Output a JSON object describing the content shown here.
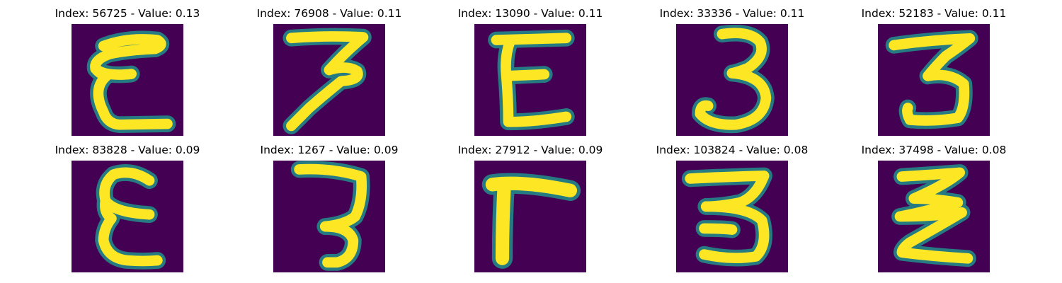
{
  "figure": {
    "background": "#ffffff",
    "image_background": "#440154",
    "colormap": [
      "#440154",
      "#3b528b",
      "#21918c",
      "#5ec962",
      "#fde725"
    ],
    "layout": {
      "rows": 2,
      "columns": 5
    }
  },
  "samples": [
    {
      "title": "Index: 56725 - Value: 0.13",
      "index": 56725,
      "value": 0.13,
      "glyph": "E"
    },
    {
      "title": "Index: 76908 - Value: 0.11",
      "index": 76908,
      "value": 0.11,
      "glyph": "7-like 3"
    },
    {
      "title": "Index: 13090 - Value: 0.11",
      "index": 13090,
      "value": 0.11,
      "glyph": "E"
    },
    {
      "title": "Index: 33336 - Value: 0.11",
      "index": 33336,
      "value": 0.11,
      "glyph": "3"
    },
    {
      "title": "Index: 52183 - Value: 0.11",
      "index": 52183,
      "value": 0.11,
      "glyph": "3"
    },
    {
      "title": "Index: 83828 - Value: 0.09",
      "index": 83828,
      "value": 0.09,
      "glyph": "E"
    },
    {
      "title": "Index: 1267 - Value: 0.09",
      "index": 1267,
      "value": 0.09,
      "glyph": "3"
    },
    {
      "title": "Index: 27912 - Value: 0.09",
      "index": 27912,
      "value": 0.09,
      "glyph": "L-like"
    },
    {
      "title": "Index: 103824 - Value: 0.08",
      "index": 103824,
      "value": 0.08,
      "glyph": "3"
    },
    {
      "title": "Index: 37498 - Value: 0.08",
      "index": 37498,
      "value": 0.08,
      "glyph": "zigzag"
    }
  ]
}
